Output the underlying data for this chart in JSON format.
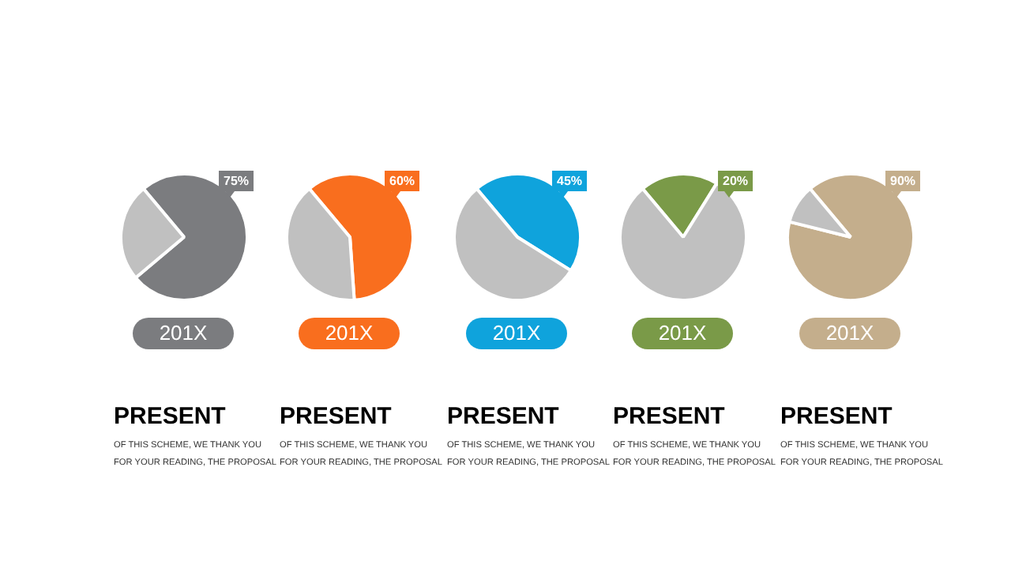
{
  "chart_data": [
    {
      "type": "pie",
      "title": "201X",
      "subtitle": "PRESENT",
      "annotations": [
        "OF THIS SCHEME, WE THANK YOU FOR YOUR READING, THE PROPOSAL"
      ],
      "categories": [
        null,
        null
      ],
      "values": [
        75,
        25
      ],
      "colors": [
        "#7b7c7f",
        "#c0c0c0"
      ],
      "value_labels": [
        "75%",
        null
      ],
      "legend": false
    },
    {
      "type": "pie",
      "title": "201X",
      "subtitle": "PRESENT",
      "annotations": [
        "OF THIS SCHEME, WE THANK YOU FOR YOUR READING, THE PROPOSAL"
      ],
      "categories": [
        null,
        null
      ],
      "values": [
        60,
        40
      ],
      "colors": [
        "#f96e1e",
        "#c0c0c0"
      ],
      "value_labels": [
        "60%",
        null
      ],
      "legend": false
    },
    {
      "type": "pie",
      "title": "201X",
      "subtitle": "PRESENT",
      "annotations": [
        "OF THIS SCHEME, WE THANK YOU FOR YOUR READING, THE PROPOSAL"
      ],
      "categories": [
        null,
        null
      ],
      "values": [
        45,
        55
      ],
      "colors": [
        "#0fa3dc",
        "#c0c0c0"
      ],
      "value_labels": [
        "45%",
        null
      ],
      "legend": false
    },
    {
      "type": "pie",
      "title": "201X",
      "subtitle": "PRESENT",
      "annotations": [
        "OF THIS SCHEME, WE THANK YOU FOR YOUR READING, THE PROPOSAL"
      ],
      "categories": [
        null,
        null
      ],
      "values": [
        20,
        80
      ],
      "colors": [
        "#7a9a48",
        "#c0c0c0"
      ],
      "value_labels": [
        "20%",
        null
      ],
      "legend": false
    },
    {
      "type": "pie",
      "title": "201X",
      "subtitle": "PRESENT",
      "annotations": [
        "OF THIS SCHEME, WE THANK YOU FOR YOUR READING, THE PROPOSAL"
      ],
      "categories": [
        null,
        null
      ],
      "values": [
        90,
        10
      ],
      "colors": [
        "#c4ae8c",
        "#c0c0c0"
      ],
      "value_labels": [
        "90%",
        null
      ],
      "legend": false
    }
  ]
}
